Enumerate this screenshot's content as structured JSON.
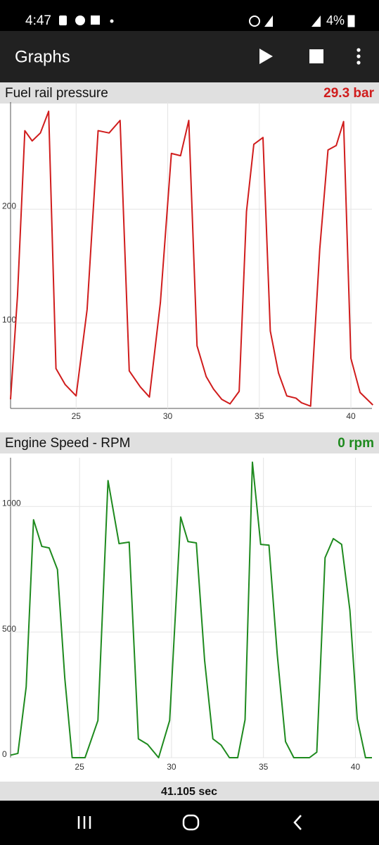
{
  "status_bar": {
    "time": "4:47",
    "battery": "4%"
  },
  "app_bar": {
    "title": "Graphs"
  },
  "charts": [
    {
      "reading": "29.3 bar",
      "chart_data": {
        "type": "line",
        "title": "Fuel rail pressure",
        "x": [
          21.42,
          21.8,
          22.2,
          22.6,
          23.05,
          23.5,
          23.9,
          24.4,
          25.0,
          25.6,
          26.2,
          26.8,
          27.4,
          27.9,
          28.5,
          29.0,
          29.6,
          30.2,
          30.7,
          31.15,
          31.6,
          32.1,
          32.5,
          32.95,
          33.4,
          33.9,
          34.3,
          34.7,
          35.2,
          35.6,
          36.05,
          36.5,
          37.0,
          37.3,
          37.8,
          38.3,
          38.75,
          39.2,
          39.6,
          40.0,
          40.5,
          41.2
        ],
        "series": [
          {
            "color": "#d01c1c",
            "values": [
              33,
              124,
              269,
              260,
              267,
              286,
              60,
              46,
              36,
              112,
              269,
              267,
              278,
              58,
              44,
              35,
              118,
              249,
              247,
              278,
              80,
              53,
              42,
              33,
              29,
              40,
              198,
              257,
              263,
              93,
              56,
              36,
              34,
              30,
              27,
              165,
              252,
              256,
              277,
              69,
              39,
              28
            ]
          }
        ],
        "xlim": [
          21.42,
          41.15
        ],
        "ylim": [
          25,
          291
        ],
        "xticks": [
          25,
          30,
          35,
          40
        ],
        "yticks": [
          100,
          200
        ],
        "grid": true
      }
    },
    {
      "reading": "0 rpm",
      "chart_data": {
        "type": "line",
        "title": "Engine Speed - RPM",
        "x": [
          21.25,
          21.65,
          22.1,
          22.5,
          22.95,
          23.35,
          23.8,
          24.2,
          24.6,
          25.3,
          26.0,
          26.55,
          27.15,
          27.7,
          28.2,
          28.7,
          29.3,
          29.9,
          30.5,
          30.9,
          31.35,
          31.8,
          32.25,
          32.7,
          33.15,
          33.6,
          34.0,
          34.4,
          34.85,
          35.3,
          35.75,
          36.2,
          36.65,
          37.05,
          37.5,
          37.9,
          38.35,
          38.8,
          39.25,
          39.7,
          40.1,
          40.55,
          40.9
        ],
        "series": [
          {
            "color": "#1e8a1e",
            "values": [
              10,
              17,
              282,
              947,
              841,
              835,
              749,
              316,
              0,
              0,
              148,
              1103,
              852,
              858,
              75,
              53,
              0,
              148,
              958,
              860,
              855,
              388,
              75,
              50,
              0,
              0,
              151,
              1176,
              849,
              846,
              411,
              64,
              0,
              0,
              0,
              22,
              796,
              872,
              849,
              587,
              154,
              0,
              0
            ]
          }
        ],
        "xlim": [
          21.25,
          40.9
        ],
        "ylim": [
          0,
          1180
        ],
        "xticks": [
          25,
          30,
          35,
          40
        ],
        "yticks": [
          0,
          500,
          1000
        ],
        "grid": true
      }
    }
  ],
  "footer": {
    "elapsed": "41.105 sec"
  }
}
